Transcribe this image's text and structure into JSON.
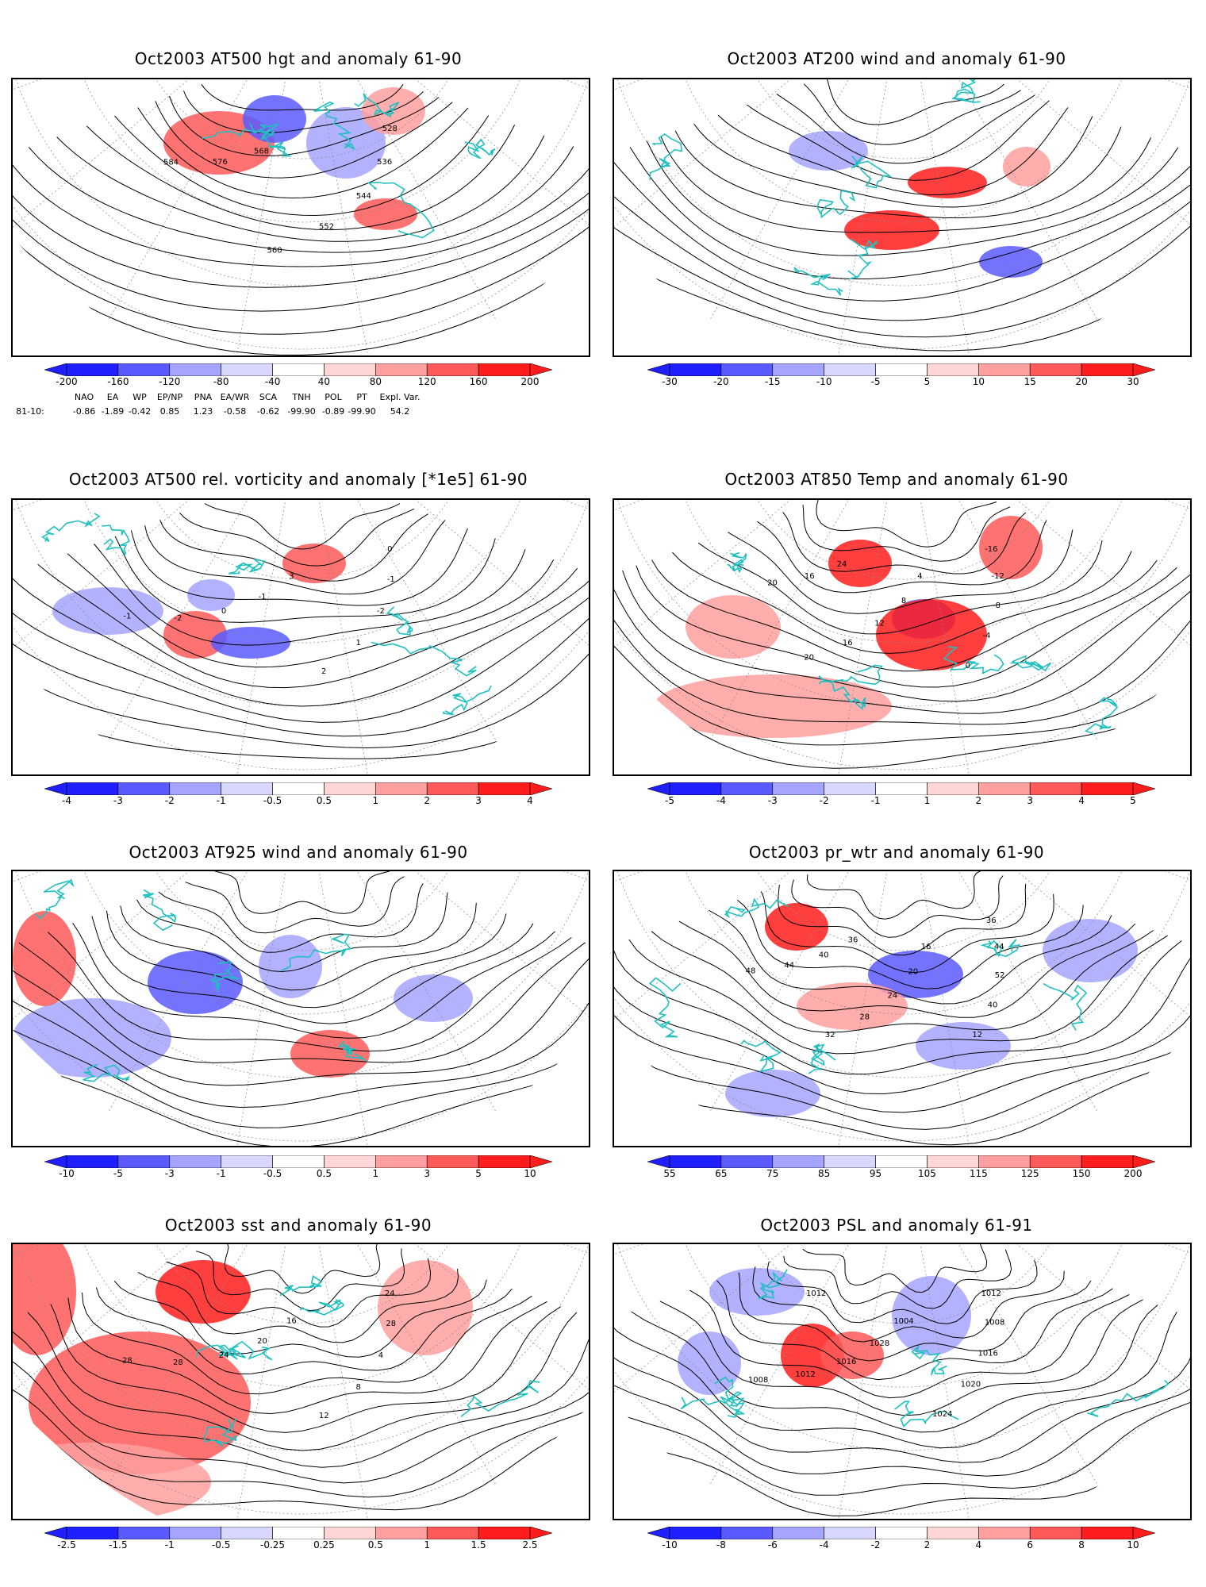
{
  "panels": [
    {
      "id": "p1",
      "title": "Oct2003 AT500 hgt and anomaly 61-90",
      "colorbar": [
        "-200",
        "-160",
        "-120",
        "-80",
        "-40",
        "40",
        "80",
        "120",
        "160",
        "200"
      ],
      "contour_labels": [
        "528",
        "536",
        "544",
        "552",
        "560",
        "568",
        "576",
        "584"
      ],
      "palette": "diverging"
    },
    {
      "id": "p2",
      "title": "Oct2003 AT200 wind and anomaly 61-90",
      "colorbar": [
        "-30",
        "-20",
        "-15",
        "-10",
        "-5",
        "5",
        "10",
        "15",
        "20",
        "30"
      ],
      "contour_labels": [],
      "palette": "diverging"
    },
    {
      "id": "p3",
      "title": "Oct2003 AT500 rel. vorticity and anomaly [*1e5] 61-90",
      "colorbar": [
        "-4",
        "-3",
        "-2",
        "-1",
        "-0.5",
        "0.5",
        "1",
        "2",
        "3",
        "4"
      ],
      "contour_labels": [
        "0",
        "-1",
        "-2",
        "1",
        "2",
        "3",
        "-1",
        "0",
        "-2",
        "-1"
      ],
      "palette": "diverging"
    },
    {
      "id": "p4",
      "title": "Oct2003 AT850 Temp and anomaly 61-90",
      "colorbar": [
        "-5",
        "-4",
        "-3",
        "-2",
        "-1",
        "1",
        "2",
        "3",
        "4",
        "5"
      ],
      "contour_labels": [
        "-16",
        "-12",
        "-8",
        "-4",
        "0",
        "4",
        "8",
        "12",
        "16",
        "20",
        "24",
        "16",
        "20"
      ],
      "palette": "diverging"
    },
    {
      "id": "p5",
      "title": "Oct2003 AT925 wind and anomaly 61-90",
      "colorbar": [
        "-10",
        "-5",
        "-3",
        "-1",
        "-0.5",
        "0.5",
        "1",
        "3",
        "5",
        "10"
      ],
      "contour_labels": [],
      "palette": "diverging"
    },
    {
      "id": "p6",
      "title": "Oct2003 pr_wtr and anomaly 61-90",
      "colorbar": [
        "55",
        "65",
        "75",
        "85",
        "95",
        "105",
        "115",
        "125",
        "150",
        "200"
      ],
      "contour_labels": [
        "36",
        "44",
        "52",
        "40",
        "12",
        "16",
        "20",
        "24",
        "28",
        "32",
        "36",
        "40",
        "44",
        "48"
      ],
      "palette": "diverging"
    },
    {
      "id": "p7",
      "title": "Oct2003 sst and anomaly 61-90",
      "colorbar": [
        "-2.5",
        "-1.5",
        "-1",
        "-0.5",
        "-0.25",
        "0.25",
        "0.5",
        "1",
        "1.5",
        "2.5"
      ],
      "contour_labels": [
        "24",
        "28",
        "4",
        "8",
        "12",
        "16",
        "20",
        "24",
        "28",
        "28"
      ],
      "palette": "diverging"
    },
    {
      "id": "p8",
      "title": "Oct2003 PSL and anomaly 61-91",
      "colorbar": [
        "-10",
        "-8",
        "-6",
        "-4",
        "-2",
        "2",
        "4",
        "6",
        "8",
        "10"
      ],
      "contour_labels": [
        "1012",
        "1008",
        "1016",
        "1020",
        "1024",
        "1004",
        "1028",
        "1016",
        "1012",
        "1008",
        "1012"
      ],
      "palette": "diverging"
    }
  ],
  "teleconnections": {
    "headers": [
      "NAO",
      "EA",
      "WP",
      "EP/NP",
      "PNA",
      "EA/WR",
      "SCA",
      "TNH",
      "POL",
      "PT",
      "Expl. Var."
    ],
    "row_label": "81-10:",
    "values": [
      "-0.86",
      "-1.89",
      "-0.42",
      "0.85",
      "1.23",
      "-0.58",
      "-0.62",
      "-99.90",
      "-0.89",
      "-99.90",
      "54.2"
    ]
  },
  "colors": {
    "blue_dark": "#1f1fff",
    "blue_mid": "#5a5aff",
    "blue_light": "#a5a5ff",
    "blue_pale": "#d8d8ff",
    "red_pale": "#ffd6d6",
    "red_light": "#ff9f9f",
    "red_mid": "#ff5959",
    "red_dark": "#ff1c1c",
    "coast": "#20c0c0"
  }
}
